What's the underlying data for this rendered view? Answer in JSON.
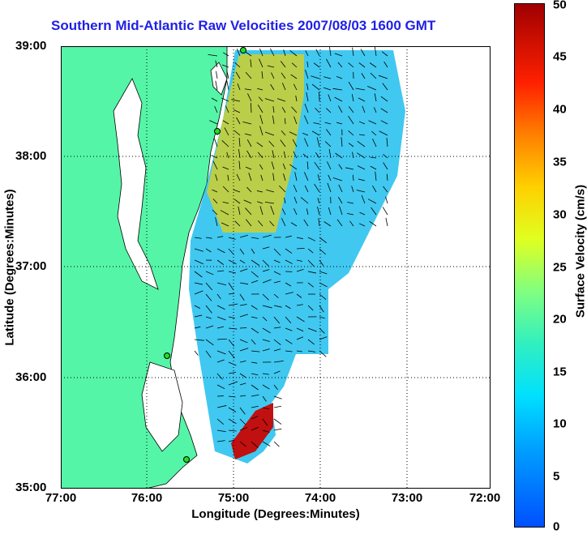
{
  "title": "Southern Mid-Atlantic Raw Velocities 2007/08/03 1600 GMT",
  "xlabel": "Longitude (Degrees:Minutes)",
  "ylabel": "Latitude (Degrees:Minutes)",
  "colorbar_label": "Surface Velocity (cm/s)",
  "lat_ticks": [
    "39:00",
    "38:00",
    "37:00",
    "36:00",
    "35:00"
  ],
  "lon_ticks": [
    "77:00",
    "76:00",
    "75:00",
    "74:00",
    "73:00",
    "72:00"
  ],
  "colorbar_ticks": [
    "50",
    "45",
    "40",
    "35",
    "30",
    "25",
    "20",
    "15",
    "10",
    "5",
    "0"
  ],
  "colors": {
    "land": "#55f5a8",
    "title": "#1f1fe6",
    "arrow": "#000000"
  }
}
